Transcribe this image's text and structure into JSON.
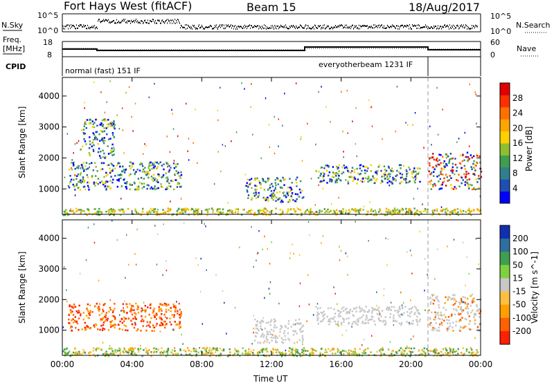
{
  "header": {
    "title": "Fort Hays West (fitACF)",
    "beam": "Beam 15",
    "date": "18/Aug/2017"
  },
  "panels": {
    "nsky_label": "N.Sky",
    "nsearch_label": "N.Search",
    "nsky_ticks": [
      "10^5",
      "10^0"
    ],
    "nsearch_ticks": [
      "10^5",
      "10^0"
    ],
    "freq_label_1": "Freq.",
    "freq_label_2": "[MHz]",
    "freq_ticks": [
      "18",
      "8"
    ],
    "nave_label": "Nave",
    "nave_ticks": [
      "60",
      "0"
    ],
    "cpid_label": "CPID",
    "cpid_entries": [
      "normal (fast) 151 IF",
      "everyotherbeam 1231 IF"
    ]
  },
  "chart_data": [
    {
      "type": "heatmap",
      "name": "power",
      "ylabel": "Slant Range [km]",
      "xlabel": "",
      "xlim": [
        0,
        24
      ],
      "ylim": [
        180,
        4600
      ],
      "x_ticks": [
        "00:00",
        "04:00",
        "08:00",
        "12:00",
        "16:00",
        "20:00",
        "00:00"
      ],
      "y_ticks": [
        1000,
        2000,
        3000,
        4000
      ],
      "colorbar": {
        "label": "Power [dB]",
        "ticks": [
          "4",
          "8",
          "12",
          "16",
          "20",
          "24",
          "28"
        ],
        "colors": [
          "#0000ff",
          "#1f4fb4",
          "#2f7f8f",
          "#3f9f4f",
          "#8fbf2f",
          "#ffd000",
          "#ffa500",
          "#ff7000",
          "#ff3000",
          "#e00000"
        ]
      },
      "features": [
        {
          "t_start": 0.0,
          "t_end": 24.0,
          "range_min": 180,
          "range_max": 400,
          "level": "16-24"
        },
        {
          "t_start": 0.3,
          "t_end": 6.8,
          "range_min": 1000,
          "range_max": 1900,
          "level": "8-20"
        },
        {
          "t_start": 1.0,
          "t_end": 3.0,
          "range_min": 2000,
          "range_max": 3300,
          "level": "4-12"
        },
        {
          "t_start": 10.5,
          "t_end": 13.8,
          "range_min": 600,
          "range_max": 1400,
          "level": "8-24"
        },
        {
          "t_start": 14.5,
          "t_end": 20.5,
          "range_min": 1200,
          "range_max": 1800,
          "level": "4-12"
        },
        {
          "t_start": 21.0,
          "t_end": 24.0,
          "range_min": 1000,
          "range_max": 2200,
          "level": "8-28"
        }
      ]
    },
    {
      "type": "heatmap",
      "name": "velocity",
      "ylabel": "Slant Range [km]",
      "xlabel": "Time UT",
      "xlim": [
        0,
        24
      ],
      "ylim": [
        180,
        4600
      ],
      "x_ticks": [
        "00:00",
        "04:00",
        "08:00",
        "12:00",
        "16:00",
        "20:00",
        "00:00"
      ],
      "y_ticks": [
        1000,
        2000,
        3000,
        4000
      ],
      "colorbar": {
        "label": "Velocity [m s^-1]",
        "ticks": [
          "200",
          "100",
          "50",
          "15",
          "-15",
          "-50",
          "-100",
          "-200"
        ],
        "colors": [
          "#1030b0",
          "#2f6fa0",
          "#3f9f4f",
          "#80d040",
          "#c8c8c8",
          "#ffc040",
          "#ffa000",
          "#ff6000",
          "#ff2000"
        ]
      },
      "features": [
        {
          "t_start": 0.0,
          "t_end": 24.0,
          "range_min": 180,
          "range_max": 450,
          "velocity": "-50 to 50"
        },
        {
          "t_start": 0.3,
          "t_end": 6.8,
          "range_min": 1000,
          "range_max": 1900,
          "velocity": "-200 to -50"
        },
        {
          "t_start": 11.0,
          "t_end": 13.8,
          "range_min": 600,
          "range_max": 1400,
          "velocity": "-15 to 15"
        },
        {
          "t_start": 14.5,
          "t_end": 20.5,
          "range_min": 1200,
          "range_max": 1800,
          "velocity": "-15 to 15"
        },
        {
          "t_start": 21.0,
          "t_end": 24.0,
          "range_min": 1000,
          "range_max": 2200,
          "velocity": "-100 to 15"
        }
      ]
    }
  ]
}
